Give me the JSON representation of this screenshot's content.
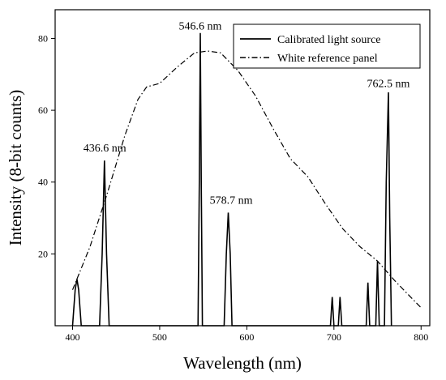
{
  "chart_data": {
    "type": "line",
    "title": "",
    "xlabel": "Wavelength (nm)",
    "ylabel": "Intensity (8-bit counts)",
    "xlim": [
      380,
      810
    ],
    "ylim": [
      0,
      88
    ],
    "x_ticks": [
      400,
      500,
      600,
      700,
      800
    ],
    "y_ticks": [
      20,
      40,
      60,
      80
    ],
    "grid": false,
    "legend_position": "top-right",
    "series": [
      {
        "name": "Calibrated light source",
        "style": "solid",
        "color": "#000000",
        "points": [
          [
            400,
            0
          ],
          [
            403,
            10
          ],
          [
            405,
            13
          ],
          [
            407,
            10
          ],
          [
            410,
            0
          ],
          [
            431,
            0
          ],
          [
            434,
            20
          ],
          [
            436.6,
            46
          ],
          [
            439,
            20
          ],
          [
            442,
            0
          ],
          [
            544,
            0
          ],
          [
            545.5,
            40
          ],
          [
            546.6,
            81.5
          ],
          [
            547.7,
            40
          ],
          [
            549,
            0
          ],
          [
            574,
            0
          ],
          [
            576.5,
            20
          ],
          [
            578.7,
            31.5
          ],
          [
            580.9,
            20
          ],
          [
            583,
            0
          ],
          [
            696,
            0
          ],
          [
            698,
            8
          ],
          [
            700,
            0
          ],
          [
            705,
            0
          ],
          [
            707,
            8
          ],
          [
            709,
            0
          ],
          [
            737,
            0
          ],
          [
            739,
            12
          ],
          [
            741,
            0
          ],
          [
            748,
            0
          ],
          [
            750,
            18
          ],
          [
            752,
            0
          ],
          [
            758,
            0
          ],
          [
            760,
            40
          ],
          [
            762.5,
            65
          ],
          [
            764,
            30
          ],
          [
            766,
            0
          ]
        ]
      },
      {
        "name": "White reference panel",
        "style": "dash-dot",
        "color": "#000000",
        "points": [
          [
            400,
            10
          ],
          [
            420,
            22
          ],
          [
            440,
            37
          ],
          [
            460,
            53
          ],
          [
            475,
            63
          ],
          [
            485,
            66.5
          ],
          [
            500,
            67.5
          ],
          [
            520,
            72
          ],
          [
            540,
            76
          ],
          [
            555,
            76.5
          ],
          [
            570,
            76
          ],
          [
            590,
            71
          ],
          [
            610,
            64
          ],
          [
            630,
            55
          ],
          [
            650,
            46.5
          ],
          [
            670,
            41.5
          ],
          [
            690,
            34
          ],
          [
            710,
            27
          ],
          [
            730,
            22
          ],
          [
            750,
            18
          ],
          [
            770,
            12.5
          ],
          [
            790,
            7.5
          ],
          [
            800,
            5
          ]
        ]
      }
    ],
    "annotations": [
      {
        "text": "436.6 nm",
        "x": 437,
        "y": 48.5
      },
      {
        "text": "546.6 nm",
        "x": 546.6,
        "y": 82.5
      },
      {
        "text": "578.7 nm",
        "x": 582,
        "y": 34
      },
      {
        "text": "762.5 nm",
        "x": 762.5,
        "y": 66.5
      }
    ]
  }
}
